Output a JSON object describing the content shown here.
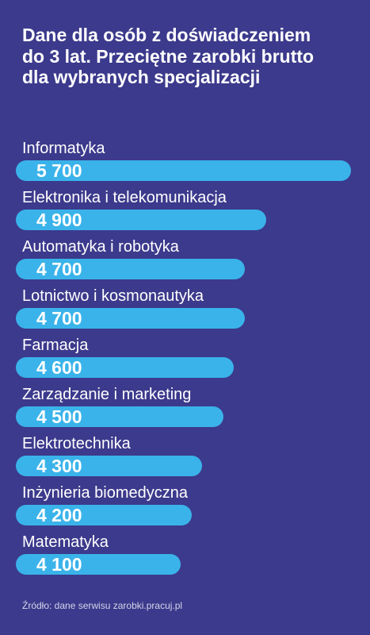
{
  "chart_data": {
    "type": "bar",
    "orientation": "horizontal",
    "title": "Dane dla osób z doświadczeniem\ndo 3 lat. Przeciętne zarobki brutto\ndla wybranych specjalizacji",
    "xlabel": "",
    "ylabel": "",
    "grid": false,
    "categories": [
      "Informatyka",
      "Elektronika i telekomunikacja",
      "Automatyka i robotyka",
      "Lotnictwo i kosmonautyka",
      "Farmacja",
      "Zarządzanie i marketing",
      "Elektrotechnika",
      "Inżynieria biomedyczna",
      "Matematyka"
    ],
    "values": [
      5700,
      4900,
      4700,
      4700,
      4600,
      4500,
      4300,
      4200,
      4100
    ],
    "value_labels": [
      "5 700",
      "4 900",
      "4 700",
      "4 700",
      "4 600",
      "4 500",
      "4 300",
      "4 200",
      "4 100"
    ],
    "source": "Źródło: dane serwisu zarobki.pracuj.pl",
    "colors": {
      "background": "#3c3a8c",
      "bar": "#3ab3ea",
      "text": "#ffffff",
      "source_text": "#d4d4ea"
    }
  }
}
